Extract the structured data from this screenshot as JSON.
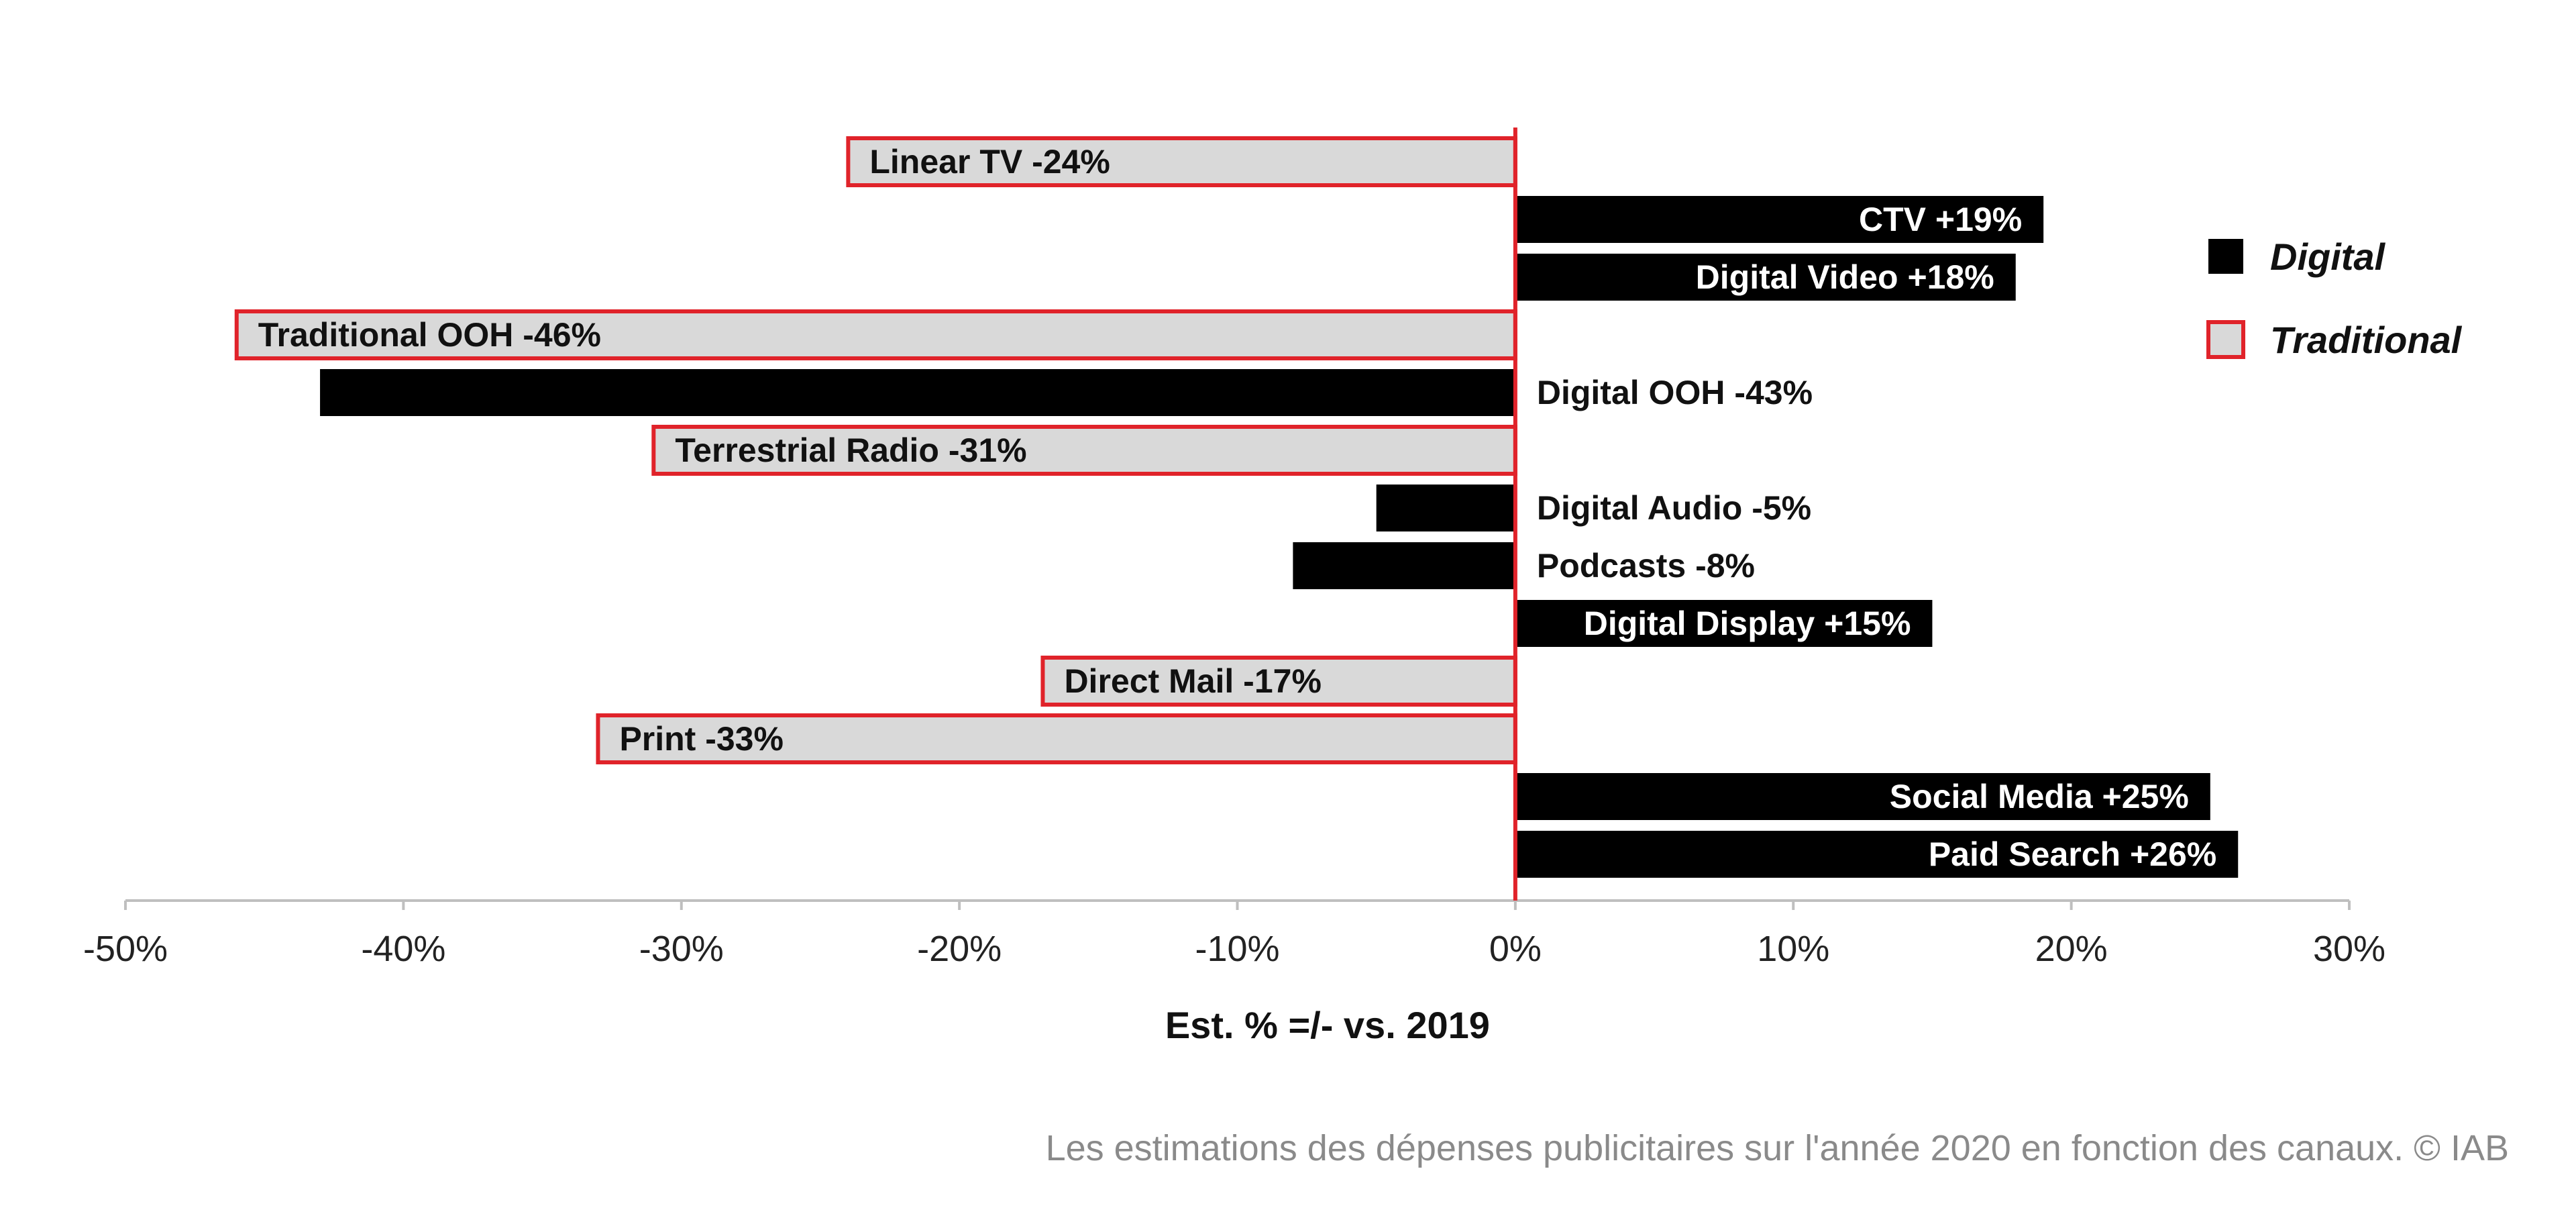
{
  "chart_data": {
    "type": "bar",
    "orientation": "horizontal",
    "xlabel": "Est. % =/- vs. 2019",
    "xlim": [
      -50,
      30
    ],
    "x_ticks": [
      {
        "value": -50,
        "label": "-50%"
      },
      {
        "value": -40,
        "label": "-40%"
      },
      {
        "value": -30,
        "label": "-30%"
      },
      {
        "value": -20,
        "label": "-20%"
      },
      {
        "value": -10,
        "label": "-10%"
      },
      {
        "value": 0,
        "label": "0%"
      },
      {
        "value": 10,
        "label": "10%"
      },
      {
        "value": 20,
        "label": "20%"
      },
      {
        "value": 30,
        "label": "30%"
      }
    ],
    "legend": {
      "placement": "top-right",
      "entries": [
        {
          "key": "digital",
          "label": "Digital"
        },
        {
          "key": "traditional",
          "label": "Traditional"
        }
      ]
    },
    "bars": [
      {
        "category": "Linear TV",
        "value": -24,
        "label": "Linear TV -24%",
        "series": "traditional"
      },
      {
        "category": "CTV",
        "value": 19,
        "label": "CTV +19%",
        "series": "digital"
      },
      {
        "category": "Digital Video",
        "value": 18,
        "label": "Digital Video +18%",
        "series": "digital"
      },
      {
        "category": "Traditional OOH",
        "value": -46,
        "label": "Traditional OOH -46%",
        "series": "traditional"
      },
      {
        "category": "Digital OOH",
        "value": -43,
        "label": "Digital OOH -43%",
        "series": "digital"
      },
      {
        "category": "Terrestrial Radio",
        "value": -31,
        "label": "Terrestrial Radio -31%",
        "series": "traditional"
      },
      {
        "category": "Digital Audio",
        "value": -5,
        "label": "Digital Audio -5%",
        "series": "digital"
      },
      {
        "category": "Podcasts",
        "value": -8,
        "label": "Podcasts -8%",
        "series": "digital"
      },
      {
        "category": "Digital Display",
        "value": 15,
        "label": "Digital Display +15%",
        "series": "digital"
      },
      {
        "category": "Direct Mail",
        "value": -17,
        "label": "Direct Mail -17%",
        "series": "traditional"
      },
      {
        "category": "Print",
        "value": -33,
        "label": "Print -33%",
        "series": "traditional"
      },
      {
        "category": "Social Media",
        "value": 25,
        "label": "Social Media +25%",
        "series": "digital"
      },
      {
        "category": "Paid Search",
        "value": 26,
        "label": "Paid Search +26%",
        "series": "digital"
      }
    ],
    "colors": {
      "digital_fill": "#000000",
      "traditional_fill": "#d9d9d9",
      "traditional_border": "#e0232a",
      "axis": "#bfbfbf",
      "zero_line": "#e0232a"
    }
  },
  "caption": "Les estimations des dépenses publicitaires sur l'année 2020 en fonction des canaux. © IAB"
}
